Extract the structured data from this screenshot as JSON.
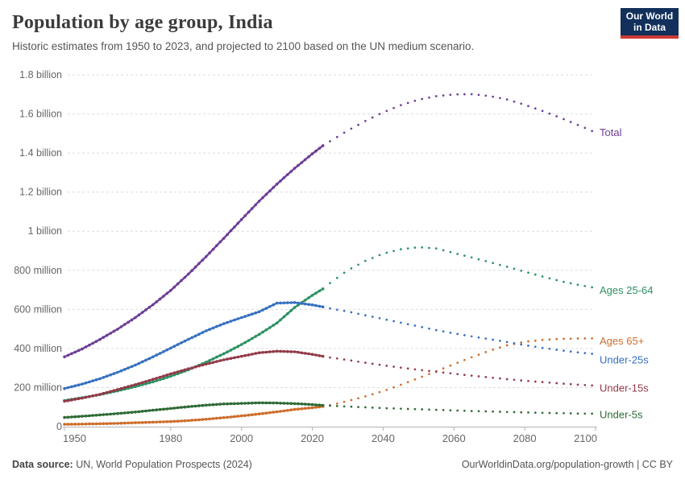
{
  "header": {
    "title": "Population by age group, India",
    "subtitle": "Historic estimates from 1950 to 2023, and projected to 2100 based on the UN medium scenario.",
    "logo": {
      "line1": "Our World",
      "line2": "in Data",
      "bg_color": "#12305b",
      "bar_color": "#cc3b34"
    }
  },
  "footer": {
    "source_label": "Data source:",
    "source_text": " UN, World Population Prospects (2024)",
    "right_text": "OurWorldinData.org/population-growth | CC BY"
  },
  "chart_data": {
    "type": "line",
    "title": "Population by age group, India",
    "xlabel": "",
    "ylabel": "",
    "unit": "millions of people",
    "x_range": [
      1950,
      2100
    ],
    "y_range": [
      0,
      1800
    ],
    "historic_until": 2023,
    "projection_style": "dotted",
    "grid": "dashed-horizontal",
    "legend_position": "right-of-lines",
    "x_ticks": [
      1950,
      1980,
      2000,
      2020,
      2040,
      2060,
      2080,
      2100
    ],
    "y_ticks": [
      {
        "value": 0,
        "label": "0"
      },
      {
        "value": 200,
        "label": "200 million"
      },
      {
        "value": 400,
        "label": "400 million"
      },
      {
        "value": 600,
        "label": "600 million"
      },
      {
        "value": 800,
        "label": "800 million"
      },
      {
        "value": 1000,
        "label": "1 billion"
      },
      {
        "value": 1200,
        "label": "1.2 billion"
      },
      {
        "value": 1400,
        "label": "1.4 billion"
      },
      {
        "value": 1600,
        "label": "1.6 billion"
      },
      {
        "value": 1800,
        "label": "1.8 billion"
      }
    ],
    "series": [
      {
        "name": "Total",
        "color": "#6d3e96",
        "historic": {
          "years": [
            1950,
            1955,
            1960,
            1965,
            1970,
            1975,
            1980,
            1985,
            1990,
            1995,
            2000,
            2005,
            2010,
            2015,
            2020,
            2023
          ],
          "values": [
            357,
            398,
            446,
            499,
            558,
            624,
            697,
            781,
            870,
            964,
            1060,
            1154,
            1241,
            1322,
            1396,
            1438
          ]
        },
        "projected": {
          "years": [
            2025,
            2030,
            2035,
            2040,
            2045,
            2050,
            2055,
            2060,
            2065,
            2070,
            2075,
            2080,
            2085,
            2090,
            2095,
            2100
          ],
          "values": [
            1460,
            1515,
            1564,
            1608,
            1645,
            1673,
            1691,
            1700,
            1701,
            1692,
            1674,
            1647,
            1616,
            1581,
            1544,
            1505
          ]
        }
      },
      {
        "name": "Ages 25-64",
        "color": "#2c9162",
        "historic": {
          "years": [
            1950,
            1955,
            1960,
            1965,
            1970,
            1975,
            1980,
            1985,
            1990,
            1995,
            2000,
            2005,
            2010,
            2015,
            2020,
            2023
          ],
          "values": [
            134,
            148,
            164,
            183,
            205,
            229,
            258,
            291,
            330,
            373,
            420,
            472,
            530,
            610,
            672,
            705
          ]
        },
        "projected": {
          "years": [
            2025,
            2030,
            2035,
            2040,
            2045,
            2050,
            2055,
            2060,
            2065,
            2070,
            2075,
            2080,
            2085,
            2090,
            2095,
            2100
          ],
          "values": [
            735,
            800,
            848,
            885,
            908,
            918,
            912,
            888,
            866,
            842,
            818,
            793,
            768,
            745,
            726,
            710
          ]
        }
      },
      {
        "name": "Ages 65+",
        "color": "#cd6d2b",
        "historic": {
          "years": [
            1950,
            1955,
            1960,
            1965,
            1970,
            1975,
            1980,
            1985,
            1990,
            1995,
            2000,
            2005,
            2010,
            2015,
            2020,
            2023
          ],
          "values": [
            12,
            13,
            15,
            17,
            20,
            23,
            26,
            31,
            38,
            46,
            55,
            65,
            76,
            88,
            97,
            103
          ]
        },
        "projected": {
          "years": [
            2025,
            2030,
            2035,
            2040,
            2045,
            2050,
            2055,
            2060,
            2065,
            2070,
            2075,
            2080,
            2085,
            2090,
            2095,
            2100
          ],
          "values": [
            110,
            131,
            155,
            182,
            214,
            248,
            284,
            320,
            355,
            388,
            416,
            434,
            444,
            449,
            451,
            452
          ]
        }
      },
      {
        "name": "Under-25s",
        "color": "#3670c0",
        "historic": {
          "years": [
            1950,
            1955,
            1960,
            1965,
            1970,
            1975,
            1980,
            1985,
            1990,
            1995,
            2000,
            2005,
            2010,
            2015,
            2020,
            2023
          ],
          "values": [
            195,
            218,
            245,
            278,
            315,
            357,
            402,
            447,
            490,
            527,
            558,
            588,
            632,
            635,
            623,
            613
          ]
        },
        "projected": {
          "years": [
            2025,
            2030,
            2035,
            2040,
            2045,
            2050,
            2055,
            2060,
            2065,
            2070,
            2075,
            2080,
            2085,
            2090,
            2095,
            2100
          ],
          "values": [
            605,
            589,
            570,
            551,
            532,
            513,
            494,
            477,
            462,
            448,
            433,
            417,
            403,
            391,
            380,
            371
          ]
        }
      },
      {
        "name": "Under-15s",
        "color": "#923a49",
        "historic": {
          "years": [
            1950,
            1955,
            1960,
            1965,
            1970,
            1975,
            1980,
            1985,
            1990,
            1995,
            2000,
            2005,
            2010,
            2015,
            2020,
            2023
          ],
          "values": [
            130,
            146,
            165,
            190,
            215,
            242,
            270,
            296,
            320,
            342,
            360,
            378,
            386,
            383,
            370,
            360
          ]
        },
        "projected": {
          "years": [
            2025,
            2030,
            2035,
            2040,
            2045,
            2050,
            2055,
            2060,
            2065,
            2070,
            2075,
            2080,
            2085,
            2090,
            2095,
            2100
          ],
          "values": [
            354,
            341,
            327,
            314,
            302,
            291,
            281,
            271,
            261,
            252,
            243,
            235,
            228,
            221,
            215,
            210
          ]
        }
      },
      {
        "name": "Under-5s",
        "color": "#2f6a35",
        "historic": {
          "years": [
            1950,
            1955,
            1960,
            1965,
            1970,
            1975,
            1980,
            1985,
            1990,
            1995,
            2000,
            2005,
            2010,
            2015,
            2020,
            2023
          ],
          "values": [
            47,
            53,
            60,
            67,
            75,
            84,
            93,
            102,
            110,
            116,
            119,
            122,
            121,
            118,
            113,
            109
          ]
        },
        "projected": {
          "years": [
            2025,
            2030,
            2035,
            2040,
            2045,
            2050,
            2055,
            2060,
            2065,
            2070,
            2075,
            2080,
            2085,
            2090,
            2095,
            2100
          ],
          "values": [
            107,
            103,
            99,
            95,
            92,
            89,
            86,
            83,
            80,
            78,
            75,
            73,
            71,
            69,
            67,
            66
          ]
        }
      }
    ]
  }
}
